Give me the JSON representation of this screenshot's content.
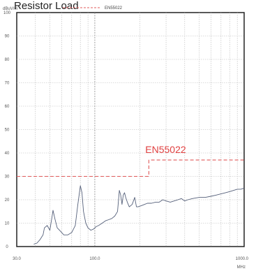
{
  "chart_data": {
    "type": "line",
    "title": "Resistor Load",
    "ylabel": "dBuV/m",
    "xlabel": "MHz",
    "x_scale": "log",
    "xlim": [
      30,
      1000
    ],
    "ylim": [
      0,
      100
    ],
    "grid": true,
    "legend_position": "top",
    "x_tick_labels": [
      "30.0",
      "100.0",
      "1000.0"
    ],
    "y_ticks": [
      0,
      10,
      20,
      30,
      40,
      50,
      60,
      70,
      80,
      90,
      100
    ],
    "annotations": [
      {
        "text": "EN55022",
        "x": 270,
        "y": 40
      }
    ],
    "series": [
      {
        "name": "EN55022",
        "style": "dashed",
        "color": "#e05a5a",
        "x": [
          30,
          230,
          230,
          1000
        ],
        "y": [
          30,
          30,
          37,
          37
        ]
      },
      {
        "name": "",
        "style": "solid",
        "color": "#55607a",
        "x": [
          39,
          41,
          43,
          45,
          46,
          48,
          50,
          51.5,
          52.5,
          54,
          56,
          58,
          62,
          66,
          70,
          74,
          77,
          80,
          82,
          84,
          87,
          90,
          94,
          98,
          102,
          106,
          112,
          118,
          124,
          130,
          136,
          142,
          146,
          149,
          152,
          155,
          158,
          161,
          165,
          170,
          178,
          185,
          190,
          195,
          205,
          215,
          225,
          240,
          255,
          270,
          285,
          300,
          320,
          340,
          360,
          380,
          400,
          420,
          450,
          500,
          550,
          600,
          650,
          700,
          750,
          800,
          850,
          900,
          950,
          1000
        ],
        "y": [
          1,
          1.5,
          3,
          5,
          8,
          9,
          7,
          12,
          15.5,
          12,
          8,
          7,
          5,
          5,
          6,
          9,
          18,
          26,
          23,
          15,
          10,
          8,
          7,
          7.5,
          8.5,
          9,
          10,
          11,
          11.5,
          12,
          13,
          15,
          24,
          22,
          18,
          22,
          23,
          21,
          19,
          17,
          18,
          21,
          17,
          17,
          17.5,
          18,
          18.5,
          18.5,
          19,
          19,
          20,
          19.5,
          19,
          19.5,
          20,
          20.5,
          19.5,
          20,
          20.5,
          21,
          21,
          21.5,
          22,
          22.5,
          23,
          23.5,
          24,
          24.5,
          24.5,
          25
        ]
      }
    ]
  }
}
